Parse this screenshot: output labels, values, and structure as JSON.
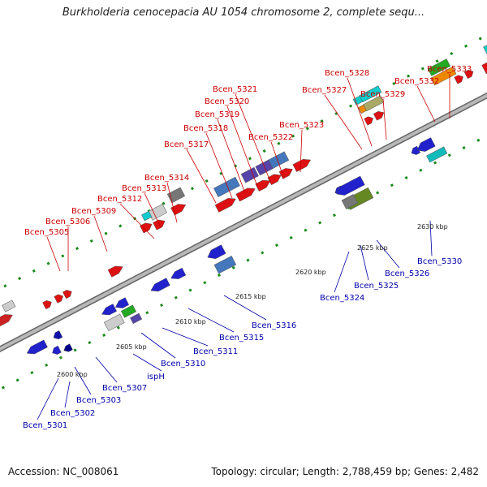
{
  "title": "Burkholderia cenocepacia AU 1054 chromosome 2, complete sequ...",
  "footer": {
    "accession": "Accession: NC_008061",
    "stats": "Topology: circular; Length: 2,788,459 bp; Genes: 2,482"
  },
  "colors": {
    "top_label": "#cc0000",
    "bottom_label": "#0000aa",
    "dash": "#1a8a1a",
    "backbone": "#999999"
  },
  "kbp_labels": [
    "2600 kbp",
    "2605 kbp",
    "2610 kbp",
    "2615 kbp",
    "2620 kbp",
    "2625 kbp",
    "2630 kbp"
  ],
  "top_labels": [
    "Bcen_5305",
    "Bcen_5306",
    "Bcen_5309",
    "Bcen_5312",
    "Bcen_5313",
    "Bcen_5314",
    "Bcen_5317",
    "Bcen_5318",
    "Bcen_5319",
    "Bcen_5320",
    "Bcen_5321",
    "Bcen_5322",
    "Bcen_5323",
    "Bcen_5327",
    "Bcen_5328",
    "Bcen_5329",
    "Bcen_5332",
    "Bcen_5333"
  ],
  "bottom_labels": [
    "Bcen_5301",
    "Bcen_5302",
    "Bcen_5303",
    "Bcen_5307",
    "ispH",
    "Bcen_5310",
    "Bcen_5311",
    "Bcen_5315",
    "Bcen_5316",
    "Bcen_5324",
    "Bcen_5325",
    "Bcen_5326",
    "Bcen_5330"
  ]
}
